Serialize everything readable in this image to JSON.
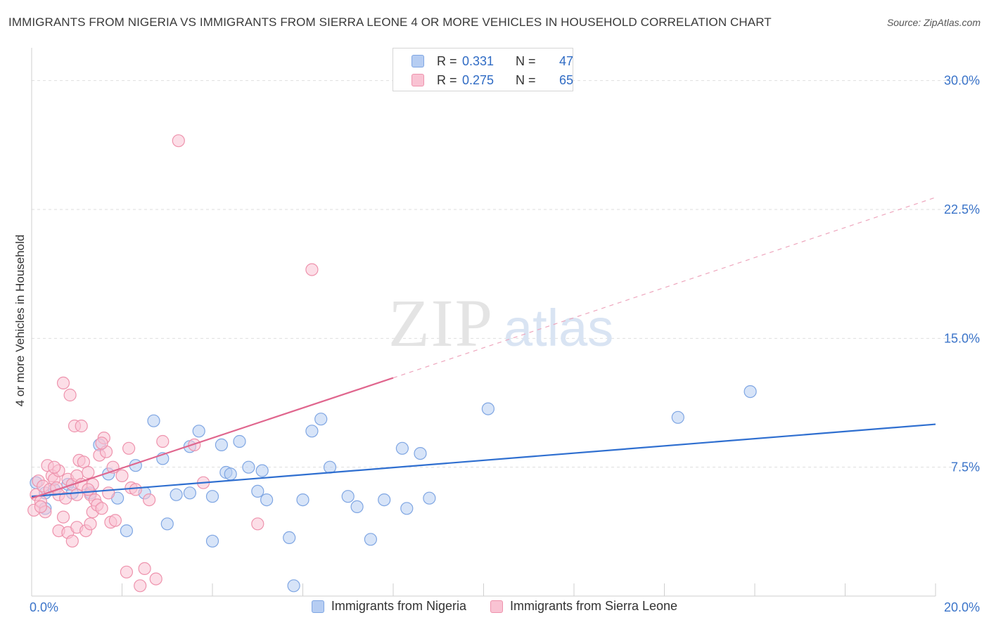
{
  "title": "IMMIGRANTS FROM NIGERIA VS IMMIGRANTS FROM SIERRA LEONE 4 OR MORE VEHICLES IN HOUSEHOLD CORRELATION CHART",
  "source": "Source: ZipAtlas.com",
  "watermark": {
    "zip": "ZIP",
    "atlas": "atlas"
  },
  "legend": {
    "r_label": "R =",
    "n_label": "N =",
    "series": [
      {
        "name": "Immigrants from Nigeria",
        "r": "0.331",
        "n": "47",
        "fill": "#b6cdf2",
        "stroke": "#7fa6e3"
      },
      {
        "name": "Immigrants from Sierra Leone",
        "r": "0.275",
        "n": "65",
        "fill": "#f9c3d3",
        "stroke": "#ee93ad"
      }
    ]
  },
  "chart_data": {
    "type": "scatter",
    "title": "IMMIGRANTS FROM NIGERIA VS IMMIGRANTS FROM SIERRA LEONE 4 OR MORE VEHICLES IN HOUSEHOLD CORRELATION CHART",
    "xlabel": "",
    "ylabel": "4 or more Vehicles in Household",
    "xlim": [
      0,
      20
    ],
    "ylim": [
      0,
      31.5
    ],
    "x_tick_labels": [
      {
        "value": 0,
        "label": "0.0%"
      },
      {
        "value": 20,
        "label": "20.0%"
      }
    ],
    "y_tick_labels": [
      {
        "value": 7.5,
        "label": "7.5%"
      },
      {
        "value": 15,
        "label": "15.0%"
      },
      {
        "value": 22.5,
        "label": "22.5%"
      },
      {
        "value": 30,
        "label": "30.0%"
      }
    ],
    "grid": true,
    "series": [
      {
        "name": "Immigrants from Nigeria",
        "color": "#2f6fd0",
        "fill": "#b6cdf2",
        "trend": {
          "x": [
            0,
            20
          ],
          "y": [
            5.8,
            10.0
          ],
          "dashed_from": null
        },
        "points": [
          [
            0.1,
            6.6
          ],
          [
            0.3,
            6.0
          ],
          [
            0.3,
            5.1
          ],
          [
            0.8,
            6.5
          ],
          [
            0.9,
            6.0
          ],
          [
            1.5,
            8.8
          ],
          [
            1.7,
            7.1
          ],
          [
            1.9,
            5.7
          ],
          [
            2.1,
            3.8
          ],
          [
            2.3,
            7.6
          ],
          [
            2.5,
            6.0
          ],
          [
            2.7,
            10.2
          ],
          [
            2.9,
            8.0
          ],
          [
            3.0,
            4.2
          ],
          [
            3.2,
            5.9
          ],
          [
            3.5,
            8.7
          ],
          [
            3.5,
            6.0
          ],
          [
            3.7,
            9.6
          ],
          [
            4.0,
            5.8
          ],
          [
            4.0,
            3.2
          ],
          [
            4.2,
            8.8
          ],
          [
            4.3,
            7.2
          ],
          [
            4.4,
            7.1
          ],
          [
            4.6,
            9.0
          ],
          [
            4.8,
            7.5
          ],
          [
            5.0,
            6.1
          ],
          [
            5.1,
            7.3
          ],
          [
            5.2,
            5.6
          ],
          [
            5.7,
            3.4
          ],
          [
            5.8,
            0.6
          ],
          [
            6.0,
            5.6
          ],
          [
            6.2,
            9.6
          ],
          [
            6.4,
            10.3
          ],
          [
            6.6,
            7.5
          ],
          [
            7.0,
            5.8
          ],
          [
            7.2,
            5.2
          ],
          [
            7.5,
            3.3
          ],
          [
            7.8,
            5.6
          ],
          [
            8.2,
            8.6
          ],
          [
            8.3,
            5.1
          ],
          [
            8.6,
            8.3
          ],
          [
            8.8,
            5.7
          ],
          [
            10.1,
            10.9
          ],
          [
            14.3,
            10.4
          ],
          [
            15.9,
            11.9
          ],
          [
            0.5,
            6.2
          ],
          [
            1.3,
            6.0
          ]
        ]
      },
      {
        "name": "Immigrants from Sierra Leone",
        "color": "#e0668e",
        "fill": "#f9c3d3",
        "trend": {
          "x": [
            0,
            20
          ],
          "y": [
            5.7,
            23.2
          ],
          "dashed_from": 8.0
        },
        "points": [
          [
            0.05,
            5.0
          ],
          [
            0.1,
            5.9
          ],
          [
            0.15,
            6.7
          ],
          [
            0.2,
            5.5
          ],
          [
            0.25,
            6.4
          ],
          [
            0.3,
            4.9
          ],
          [
            0.35,
            7.6
          ],
          [
            0.4,
            6.2
          ],
          [
            0.45,
            7.0
          ],
          [
            0.5,
            6.8
          ],
          [
            0.55,
            6.3
          ],
          [
            0.6,
            5.9
          ],
          [
            0.6,
            7.3
          ],
          [
            0.7,
            4.6
          ],
          [
            0.6,
            3.8
          ],
          [
            0.7,
            12.4
          ],
          [
            0.75,
            5.7
          ],
          [
            0.8,
            6.8
          ],
          [
            0.8,
            3.7
          ],
          [
            0.85,
            11.7
          ],
          [
            0.9,
            6.5
          ],
          [
            0.9,
            3.2
          ],
          [
            0.95,
            9.9
          ],
          [
            1.0,
            5.9
          ],
          [
            1.0,
            4.0
          ],
          [
            1.0,
            7.0
          ],
          [
            1.05,
            7.9
          ],
          [
            1.1,
            6.5
          ],
          [
            1.1,
            9.9
          ],
          [
            1.15,
            7.8
          ],
          [
            1.2,
            3.8
          ],
          [
            1.25,
            7.2
          ],
          [
            1.3,
            5.9
          ],
          [
            1.3,
            4.2
          ],
          [
            1.35,
            4.9
          ],
          [
            1.35,
            6.5
          ],
          [
            1.4,
            5.6
          ],
          [
            1.45,
            5.3
          ],
          [
            1.5,
            8.2
          ],
          [
            1.55,
            5.1
          ],
          [
            1.6,
            9.2
          ],
          [
            1.65,
            8.4
          ],
          [
            1.7,
            6.0
          ],
          [
            1.75,
            4.3
          ],
          [
            1.8,
            7.5
          ],
          [
            1.85,
            4.4
          ],
          [
            2.0,
            7.0
          ],
          [
            2.1,
            1.4
          ],
          [
            2.15,
            8.6
          ],
          [
            2.2,
            6.3
          ],
          [
            2.3,
            6.2
          ],
          [
            2.4,
            0.6
          ],
          [
            2.5,
            1.6
          ],
          [
            2.6,
            5.6
          ],
          [
            2.75,
            1.0
          ],
          [
            2.9,
            9.0
          ],
          [
            3.25,
            26.5
          ],
          [
            3.6,
            8.8
          ],
          [
            3.8,
            6.6
          ],
          [
            5.0,
            4.2
          ],
          [
            6.2,
            19.0
          ],
          [
            1.25,
            6.2
          ],
          [
            0.5,
            7.5
          ],
          [
            1.55,
            8.9
          ],
          [
            0.2,
            5.2
          ]
        ]
      }
    ]
  }
}
